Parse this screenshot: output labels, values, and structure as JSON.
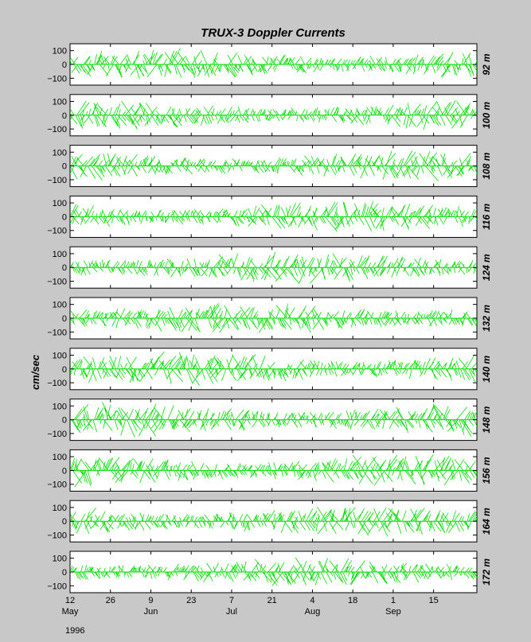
{
  "chart_data": {
    "type": "line",
    "title": "TRUX-3   Doppler Currents",
    "ylabel": "cm/sec",
    "ylim": [
      -150,
      150
    ],
    "yticks": [
      100,
      0,
      -100
    ],
    "ytick_labels": [
      "100",
      "0",
      "−100"
    ],
    "xlim": [
      "1996-05-12",
      "1996-09-30"
    ],
    "x_ticks": [
      {
        "date": "1996-05-12",
        "day": "12",
        "month": "May"
      },
      {
        "date": "1996-05-26",
        "day": "26",
        "month": ""
      },
      {
        "date": "1996-06-09",
        "day": "9",
        "month": "Jun"
      },
      {
        "date": "1996-06-23",
        "day": "23",
        "month": ""
      },
      {
        "date": "1996-07-07",
        "day": "7",
        "month": "Jul"
      },
      {
        "date": "1996-07-21",
        "day": "21",
        "month": ""
      },
      {
        "date": "1996-08-04",
        "day": "4",
        "month": "Aug"
      },
      {
        "date": "1996-08-18",
        "day": "18",
        "month": ""
      },
      {
        "date": "1996-09-01",
        "day": "1",
        "month": "Sep"
      },
      {
        "date": "1996-09-15",
        "day": "15",
        "month": ""
      }
    ],
    "year_label": "1996",
    "grid": false,
    "panels": [
      {
        "depth": "92 m",
        "amplitude": 120
      },
      {
        "depth": "100 m",
        "amplitude": 115
      },
      {
        "depth": "108 m",
        "amplitude": 115
      },
      {
        "depth": "116 m",
        "amplitude": 120
      },
      {
        "depth": "124 m",
        "amplitude": 120
      },
      {
        "depth": "132 m",
        "amplitude": 125
      },
      {
        "depth": "140 m",
        "amplitude": 130
      },
      {
        "depth": "148 m",
        "amplitude": 130
      },
      {
        "depth": "156 m",
        "amplitude": 130
      },
      {
        "depth": "164 m",
        "amplitude": 125
      },
      {
        "depth": "172 m",
        "amplitude": 110
      }
    ],
    "line_color": "#00dd00",
    "background": "#c8c8c8"
  }
}
